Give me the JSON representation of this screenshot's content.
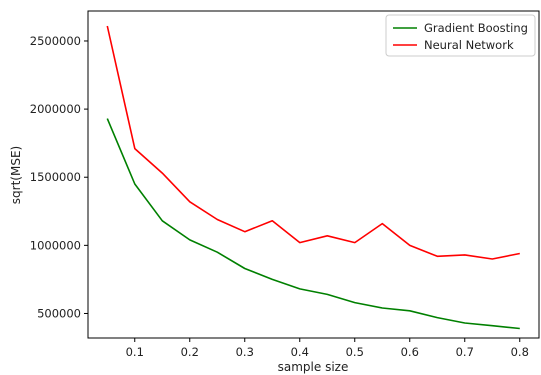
{
  "chart_data": {
    "type": "line",
    "xlabel": "sample size",
    "ylabel": "sqrt(MSE)",
    "xlim": [
      0.015,
      0.835
    ],
    "ylim": [
      320000,
      2720000
    ],
    "xticks": [
      0.1,
      0.2,
      0.3,
      0.4,
      0.5,
      0.6,
      0.7,
      0.8
    ],
    "xtick_labels": [
      "0.1",
      "0.2",
      "0.3",
      "0.4",
      "0.5",
      "0.6",
      "0.7",
      "0.8"
    ],
    "yticks": [
      500000,
      1000000,
      1500000,
      2000000,
      2500000
    ],
    "ytick_labels": [
      "500000",
      "1000000",
      "1500000",
      "2000000",
      "2500000"
    ],
    "x": [
      0.05,
      0.1,
      0.15,
      0.2,
      0.25,
      0.3,
      0.35,
      0.4,
      0.45,
      0.5,
      0.55,
      0.6,
      0.65,
      0.7,
      0.75,
      0.8
    ],
    "grid": false,
    "legend_position": "top-right",
    "series": [
      {
        "name": "Gradient Boosting",
        "color": "#008000",
        "values": [
          1930000,
          1450000,
          1180000,
          1040000,
          950000,
          830000,
          750000,
          680000,
          640000,
          580000,
          540000,
          520000,
          470000,
          430000,
          410000,
          390000
        ]
      },
      {
        "name": "Neural Network",
        "color": "#ff0000",
        "values": [
          2610000,
          1710000,
          1530000,
          1320000,
          1190000,
          1100000,
          1180000,
          1020000,
          1070000,
          1020000,
          1160000,
          1000000,
          920000,
          930000,
          900000,
          940000
        ]
      }
    ]
  }
}
